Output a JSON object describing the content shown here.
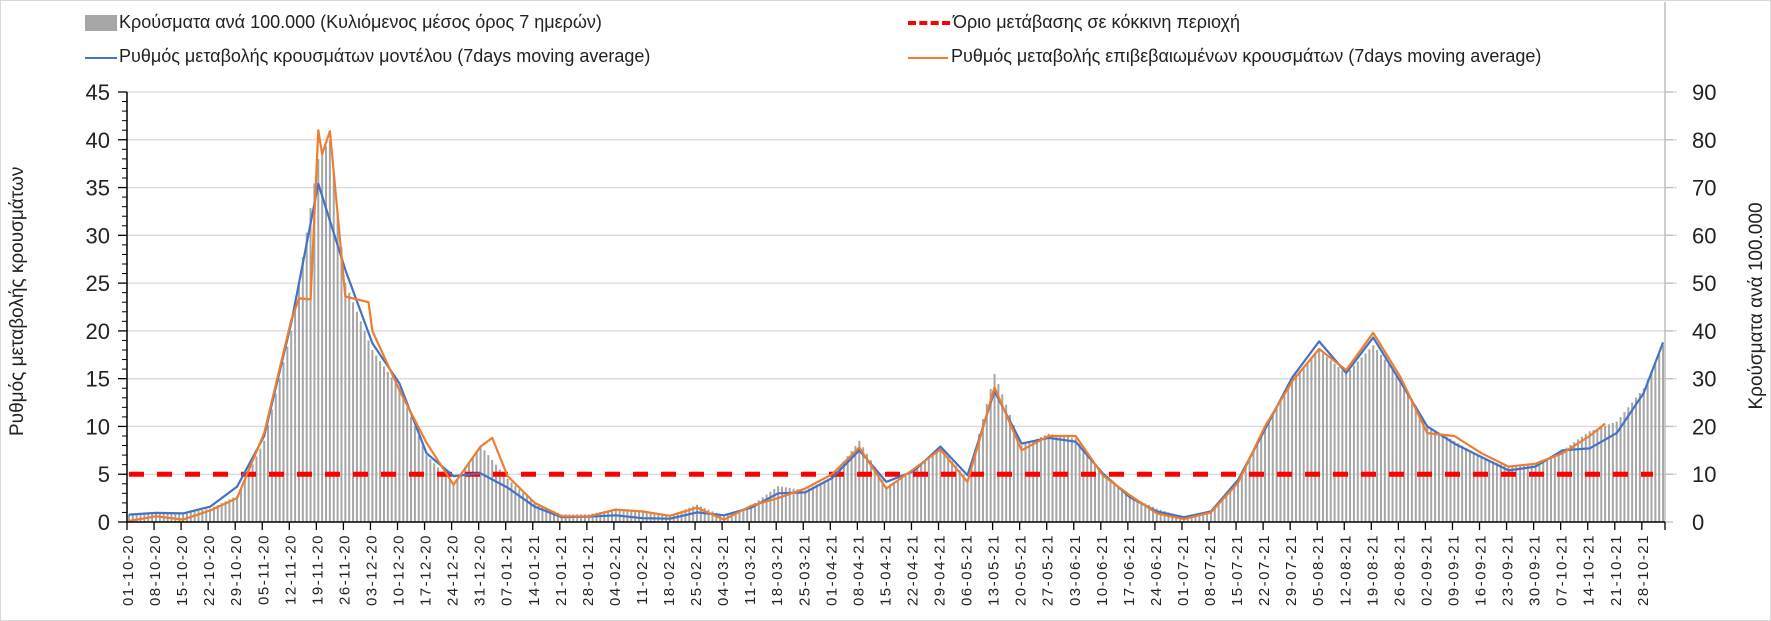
{
  "legend": {
    "bars": "Κρούσματα ανά 100.000 (Κυλιόμενος μέσος όρος 7 ημερών)",
    "threshold": "Όριο μετάβασης σε κόκκινη περιοχή",
    "model": "Ρυθμός μεταβολής κρουσμάτων μοντέλου (7days moving average)",
    "confirmed": "Ρυθμός μεταβολής επιβεβαιωμένων κρουσμάτων (7days moving average)"
  },
  "chart_data": {
    "type": "bar+line",
    "start_date": "01-10-20",
    "end_date": "02-11-21",
    "ylabel_left": "Ρυθμός μεταβολής κρουσμάτων",
    "ylabel_right": "Κρούσματα ανά 100.000",
    "ylim_left": [
      0,
      45
    ],
    "ylim_right": [
      0,
      90
    ],
    "yticks_left": [
      "0",
      "5",
      "10",
      "15",
      "20",
      "25",
      "30",
      "35",
      "40",
      "45"
    ],
    "yticks_right": [
      "0",
      "10",
      "20",
      "30",
      "40",
      "50",
      "60",
      "70",
      "80",
      "90"
    ],
    "grid": true,
    "legend_position": "top",
    "xticks": [
      "01-10-20",
      "08-10-20",
      "15-10-20",
      "22-10-20",
      "29-10-20",
      "05-11-20",
      "12-11-20",
      "19-11-20",
      "26-11-20",
      "03-12-20",
      "10-12-20",
      "17-12-20",
      "24-12-20",
      "31-12-20",
      "07-01-21",
      "14-01-21",
      "21-01-21",
      "28-01-21",
      "04-02-21",
      "11-02-21",
      "18-02-21",
      "25-02-21",
      "04-03-21",
      "11-03-21",
      "18-03-21",
      "25-03-21",
      "01-04-21",
      "08-04-21",
      "15-04-21",
      "22-04-21",
      "29-04-21",
      "06-05-21",
      "13-05-21",
      "20-05-21",
      "27-05-21",
      "03-06-21",
      "10-06-21",
      "17-06-21",
      "24-06-21",
      "01-07-21",
      "08-07-21",
      "15-07-21",
      "22-07-21",
      "29-07-21",
      "05-08-21",
      "12-08-21",
      "19-08-21",
      "26-08-21",
      "02-09-21",
      "09-09-21",
      "16-09-21",
      "23-09-21",
      "30-09-21",
      "07-10-21",
      "14-10-21",
      "21-10-21",
      "28-10-21"
    ],
    "threshold": {
      "value_left": 5,
      "color": "#ff0000"
    },
    "bars": {
      "name": "Κρούσματα ανά 100.000 (Κυλιόμενος μέσος όρος 7 ημερών)",
      "axis": "right",
      "color": "#a6a6a6",
      "x": [
        "01-10-20",
        "08-10-20",
        "15-10-20",
        "22-10-20",
        "29-10-20",
        "05-11-20",
        "12-11-20",
        "19-11-20",
        "22-11-20",
        "26-11-20",
        "03-12-20",
        "10-12-20",
        "17-12-20",
        "24-12-20",
        "31-12-20",
        "07-01-21",
        "14-01-21",
        "21-01-21",
        "28-01-21",
        "04-02-21",
        "11-02-21",
        "18-02-21",
        "25-02-21",
        "04-03-21",
        "11-03-21",
        "18-03-21",
        "25-03-21",
        "01-04-21",
        "08-04-21",
        "15-04-21",
        "22-04-21",
        "29-04-21",
        "06-05-21",
        "13-05-21",
        "20-05-21",
        "27-05-21",
        "03-06-21",
        "10-06-21",
        "17-06-21",
        "24-06-21",
        "01-07-21",
        "08-07-21",
        "15-07-21",
        "22-07-21",
        "29-07-21",
        "05-08-21",
        "12-08-21",
        "19-08-21",
        "26-08-21",
        "02-09-21",
        "09-09-21",
        "16-09-21",
        "23-09-21",
        "30-09-21",
        "07-10-21",
        "14-10-21",
        "21-10-21",
        "28-10-21",
        "02-11-21"
      ],
      "values": [
        1.6,
        2.0,
        1.8,
        2.8,
        5.5,
        17,
        40,
        76,
        80,
        50,
        36,
        28,
        14,
        8,
        16,
        9,
        4,
        1.6,
        1.6,
        2.8,
        2.2,
        1.4,
        3.6,
        1.2,
        3.4,
        7.5,
        6.6,
        9.5,
        17,
        7.5,
        10.5,
        15.5,
        9,
        31,
        16,
        18.5,
        17.5,
        10,
        5.4,
        2.8,
        1.0,
        2.0,
        8.5,
        20,
        30,
        36,
        31,
        37,
        30,
        20,
        17,
        13.5,
        11.5,
        12,
        15,
        19,
        21,
        28,
        37
      ]
    },
    "series": [
      {
        "name": "Ρυθμός μεταβολής κρουσμάτων μοντέλου (7days moving average)",
        "axis": "left",
        "color": "#4472c4",
        "x": [
          "01-10-20",
          "08-10-20",
          "15-10-20",
          "22-10-20",
          "29-10-20",
          "05-11-20",
          "12-11-20",
          "19-11-20",
          "26-11-20",
          "03-12-20",
          "10-12-20",
          "17-12-20",
          "24-12-20",
          "31-12-20",
          "07-01-21",
          "14-01-21",
          "21-01-21",
          "28-01-21",
          "04-02-21",
          "11-02-21",
          "18-02-21",
          "25-02-21",
          "04-03-21",
          "11-03-21",
          "18-03-21",
          "25-03-21",
          "01-04-21",
          "08-04-21",
          "15-04-21",
          "22-04-21",
          "29-04-21",
          "06-05-21",
          "13-05-21",
          "20-05-21",
          "27-05-21",
          "03-06-21",
          "10-06-21",
          "17-06-21",
          "24-06-21",
          "01-07-21",
          "08-07-21",
          "15-07-21",
          "22-07-21",
          "29-07-21",
          "05-08-21",
          "12-08-21",
          "19-08-21",
          "26-08-21",
          "02-09-21",
          "09-09-21",
          "16-09-21",
          "23-09-21",
          "30-09-21",
          "07-10-21",
          "14-10-21",
          "21-10-21",
          "28-10-21",
          "02-11-21"
        ],
        "values": [
          0.77,
          0.95,
          0.9,
          1.6,
          3.7,
          9,
          20.8,
          35.4,
          26.4,
          18.7,
          14.5,
          7.2,
          4.8,
          5.1,
          3.6,
          1.6,
          0.5,
          0.55,
          0.7,
          0.4,
          0.35,
          1.0,
          0.7,
          1.5,
          3.0,
          3.1,
          4.6,
          7.5,
          4.2,
          5.3,
          7.9,
          4.9,
          13.7,
          8.2,
          8.8,
          8.4,
          5.1,
          2.6,
          1.1,
          0.5,
          1.1,
          4.4,
          9.7,
          15.1,
          18.9,
          15.6,
          19.3,
          14.7,
          10,
          8.2,
          6.8,
          5.4,
          5.8,
          7.5,
          7.7,
          9.3,
          13.5,
          18.8
        ]
      },
      {
        "name": "Ρυθμός μεταβολής επιβεβαιωμένων κρουσμάτων (7days moving average)",
        "axis": "left",
        "color": "#ed7d31",
        "x": [
          "01-10-20",
          "08-10-20",
          "15-10-20",
          "22-10-20",
          "29-10-20",
          "05-11-20",
          "12-11-20",
          "14-11-20",
          "17-11-20",
          "19-11-20",
          "20-11-20",
          "22-11-20",
          "26-11-20",
          "02-12-20",
          "03-12-20",
          "10-12-20",
          "17-12-20",
          "24-12-20",
          "31-12-20",
          "03-01-21",
          "07-01-21",
          "14-01-21",
          "21-01-21",
          "28-01-21",
          "04-02-21",
          "11-02-21",
          "18-02-21",
          "25-02-21",
          "04-03-21",
          "11-03-21",
          "18-03-21",
          "25-03-21",
          "01-04-21",
          "08-04-21",
          "15-04-21",
          "22-04-21",
          "29-04-21",
          "06-05-21",
          "13-05-21",
          "20-05-21",
          "27-05-21",
          "03-06-21",
          "10-06-21",
          "17-06-21",
          "24-06-21",
          "01-07-21",
          "08-07-21",
          "15-07-21",
          "22-07-21",
          "29-07-21",
          "05-08-21",
          "12-08-21",
          "19-08-21",
          "26-08-21",
          "02-09-21",
          "09-09-21",
          "16-09-21",
          "23-09-21",
          "30-09-21",
          "07-10-21",
          "14-10-21",
          "18-10-21"
        ],
        "values": [
          0.1,
          0.6,
          0.25,
          1.2,
          2.5,
          9.3,
          21.1,
          23.4,
          23.3,
          41.0,
          38.5,
          40.9,
          23.6,
          23.0,
          20,
          13.8,
          8.3,
          3.9,
          7.9,
          8.8,
          4.8,
          2.0,
          0.6,
          0.6,
          1.3,
          1.1,
          0.65,
          1.5,
          0.25,
          1.7,
          2.5,
          3.5,
          5.0,
          7.8,
          3.5,
          5.5,
          7.6,
          4.2,
          14.1,
          7.5,
          9.0,
          9.0,
          4.9,
          2.8,
          0.9,
          0.3,
          1.0,
          4.1,
          10,
          14.7,
          18.1,
          15.9,
          19.8,
          15.2,
          9.3,
          9.0,
          7.2,
          5.8,
          6.1,
          7.2,
          9.0,
          10.3
        ]
      }
    ]
  }
}
